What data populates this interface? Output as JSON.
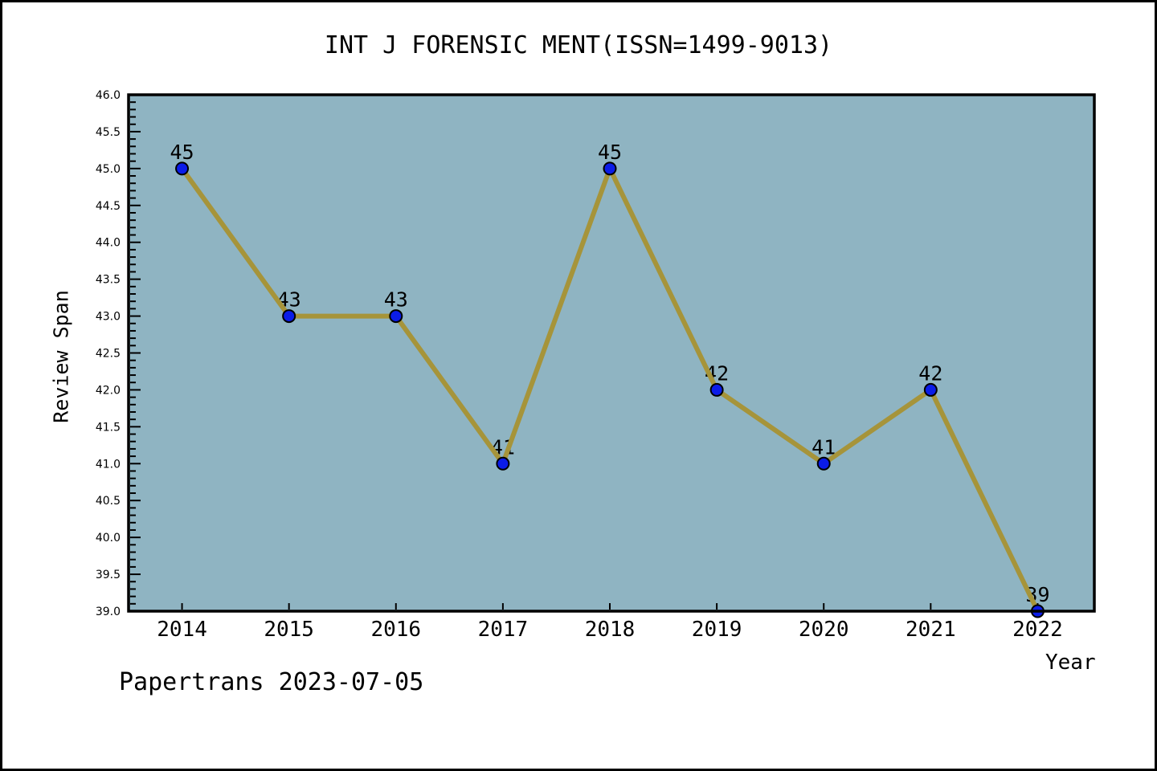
{
  "title": "INT J FORENSIC MENT(ISSN=1499-9013)",
  "footer": "Papertrans 2023-07-05",
  "colors": {
    "plot_bg": "#8FB4C2",
    "line": "#A6943A",
    "marker_fill": "#0B1CE8",
    "marker_edge": "#000000",
    "axis": "#000000",
    "text": "#000000",
    "page_bg": "#FFFFFF"
  },
  "chart_data": {
    "type": "line",
    "title": "INT J FORENSIC MENT(ISSN=1499-9013)",
    "xlabel": "Year",
    "ylabel": "Review Span",
    "x": [
      2014,
      2015,
      2016,
      2017,
      2018,
      2019,
      2020,
      2021,
      2022
    ],
    "series": [
      {
        "name": "Review Span",
        "values": [
          45,
          43,
          43,
          41,
          45,
          42,
          41,
          42,
          39
        ]
      }
    ],
    "point_labels": [
      "45",
      "43",
      "43",
      "41",
      "45",
      "42",
      "41",
      "42",
      "39"
    ],
    "x_tick_labels": [
      "2014",
      "2015",
      "2016",
      "2017",
      "2018",
      "2019",
      "2020",
      "2021",
      "2022"
    ],
    "y_tick_labels": [
      "39.0",
      "39.5",
      "40.0",
      "40.5",
      "41.0",
      "41.5",
      "42.0",
      "42.5",
      "43.0",
      "43.5",
      "44.0",
      "44.5",
      "45.0",
      "45.5",
      "46.0"
    ],
    "xlim": [
      2013.5,
      2022.53
    ],
    "ylim": [
      39.0,
      46.0
    ],
    "y_major_tick_step": 0.5,
    "y_minor_tick_step": 0.1,
    "grid": false,
    "legend": false
  }
}
